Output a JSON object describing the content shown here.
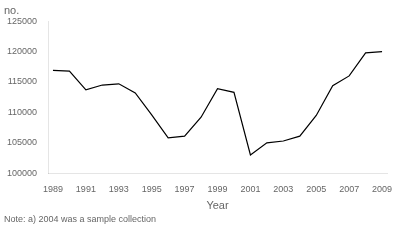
{
  "chart_data": {
    "type": "line",
    "x": [
      1989,
      1990,
      1991,
      1992,
      1993,
      1994,
      1995,
      1996,
      1997,
      1998,
      1999,
      2000,
      2001,
      2002,
      2003,
      2004,
      2005,
      2006,
      2007,
      2008,
      2009
    ],
    "values": [
      116900,
      116800,
      113700,
      114500,
      114700,
      113200,
      109600,
      105800,
      106100,
      109200,
      113900,
      113300,
      103000,
      105000,
      105300,
      106100,
      109500,
      114400,
      116000,
      119800,
      120000
    ],
    "color": "#000000",
    "xlabel": "Year",
    "ylabel": "no.",
    "annotations": [
      "Note: a) 2004 was a sample collection"
    ],
    "xlim": [
      1988.7,
      2009.3
    ],
    "ylim": [
      100000,
      125000
    ],
    "xticks": [
      1989,
      1991,
      1993,
      1995,
      1997,
      1999,
      2001,
      2003,
      2005,
      2007,
      2009
    ],
    "yticks": [
      100000,
      105000,
      110000,
      115000,
      120000,
      125000
    ],
    "grid": false
  }
}
